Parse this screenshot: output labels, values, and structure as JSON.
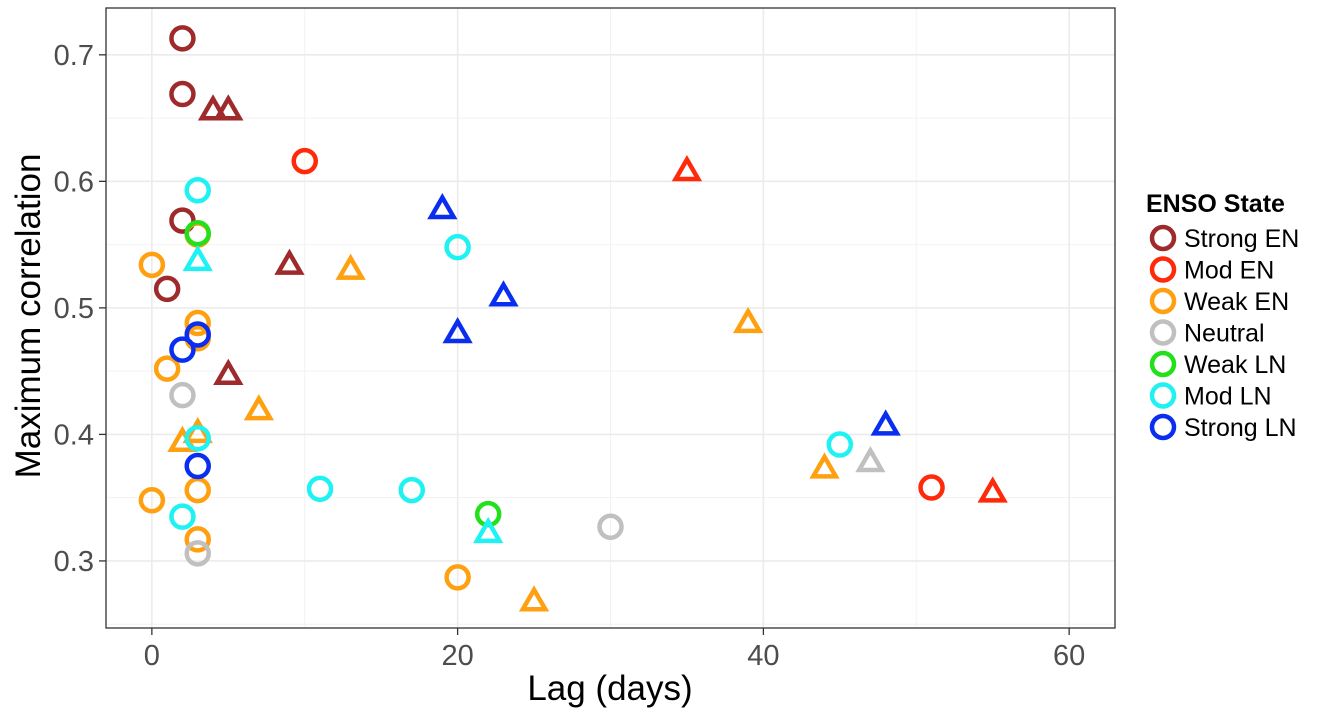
{
  "chart_data": {
    "type": "scatter",
    "xlabel": "Lag (days)",
    "ylabel": "Maximum correlation",
    "xlim": [
      -3,
      63
    ],
    "ylim": [
      0.247,
      0.737
    ],
    "x_ticks": [
      0,
      20,
      40,
      60
    ],
    "x_tick_labels": [
      "0",
      "20",
      "40",
      "60"
    ],
    "y_ticks": [
      0.3,
      0.4,
      0.5,
      0.6,
      0.7
    ],
    "y_tick_labels": [
      "0.3",
      "0.4",
      "0.5",
      "0.6",
      "0.7"
    ],
    "grid": true,
    "legend_title": "ENSO State",
    "legend_position": "right",
    "series": [
      {
        "name": "Strong EN",
        "color": "#9e2a2b",
        "points": [
          {
            "x": 2,
            "y": 0.713,
            "shape": "circle"
          },
          {
            "x": 2,
            "y": 0.669,
            "shape": "circle"
          },
          {
            "x": 2,
            "y": 0.569,
            "shape": "circle"
          },
          {
            "x": 1,
            "y": 0.515,
            "shape": "circle"
          },
          {
            "x": 4,
            "y": 0.655,
            "shape": "triangle"
          },
          {
            "x": 5,
            "y": 0.655,
            "shape": "triangle"
          },
          {
            "x": 9,
            "y": 0.533,
            "shape": "triangle"
          },
          {
            "x": 5,
            "y": 0.446,
            "shape": "triangle"
          }
        ]
      },
      {
        "name": "Mod EN",
        "color": "#ff2a0a",
        "points": [
          {
            "x": 10,
            "y": 0.616,
            "shape": "circle"
          },
          {
            "x": 51,
            "y": 0.358,
            "shape": "circle"
          },
          {
            "x": 35,
            "y": 0.607,
            "shape": "triangle"
          },
          {
            "x": 55,
            "y": 0.353,
            "shape": "triangle"
          }
        ]
      },
      {
        "name": "Weak EN",
        "color": "#ffa010",
        "points": [
          {
            "x": 0,
            "y": 0.534,
            "shape": "circle"
          },
          {
            "x": 3,
            "y": 0.558,
            "shape": "circle"
          },
          {
            "x": 3,
            "y": 0.488,
            "shape": "circle"
          },
          {
            "x": 3,
            "y": 0.476,
            "shape": "circle"
          },
          {
            "x": 1,
            "y": 0.452,
            "shape": "circle"
          },
          {
            "x": 0,
            "y": 0.348,
            "shape": "circle"
          },
          {
            "x": 3,
            "y": 0.356,
            "shape": "circle"
          },
          {
            "x": 3,
            "y": 0.317,
            "shape": "circle"
          },
          {
            "x": 20,
            "y": 0.287,
            "shape": "circle"
          },
          {
            "x": 13,
            "y": 0.529,
            "shape": "triangle"
          },
          {
            "x": 7,
            "y": 0.418,
            "shape": "triangle"
          },
          {
            "x": 2,
            "y": 0.393,
            "shape": "triangle"
          },
          {
            "x": 3,
            "y": 0.4,
            "shape": "triangle"
          },
          {
            "x": 25,
            "y": 0.267,
            "shape": "triangle"
          },
          {
            "x": 39,
            "y": 0.487,
            "shape": "triangle"
          },
          {
            "x": 44,
            "y": 0.372,
            "shape": "triangle"
          }
        ]
      },
      {
        "name": "Neutral",
        "color": "#c0c0c0",
        "points": [
          {
            "x": 2,
            "y": 0.431,
            "shape": "circle"
          },
          {
            "x": 3,
            "y": 0.306,
            "shape": "circle"
          },
          {
            "x": 30,
            "y": 0.327,
            "shape": "circle"
          },
          {
            "x": 47,
            "y": 0.377,
            "shape": "triangle"
          }
        ]
      },
      {
        "name": "Weak LN",
        "color": "#22e01a",
        "points": [
          {
            "x": 3,
            "y": 0.559,
            "shape": "circle"
          },
          {
            "x": 22,
            "y": 0.337,
            "shape": "circle"
          }
        ]
      },
      {
        "name": "Mod LN",
        "color": "#1ef2f2",
        "points": [
          {
            "x": 3,
            "y": 0.593,
            "shape": "circle"
          },
          {
            "x": 20,
            "y": 0.548,
            "shape": "circle"
          },
          {
            "x": 3,
            "y": 0.397,
            "shape": "circle"
          },
          {
            "x": 2,
            "y": 0.335,
            "shape": "circle"
          },
          {
            "x": 11,
            "y": 0.357,
            "shape": "circle"
          },
          {
            "x": 17,
            "y": 0.356,
            "shape": "circle"
          },
          {
            "x": 45,
            "y": 0.392,
            "shape": "circle"
          },
          {
            "x": 3,
            "y": 0.536,
            "shape": "triangle"
          },
          {
            "x": 22,
            "y": 0.321,
            "shape": "triangle"
          }
        ]
      },
      {
        "name": "Strong LN",
        "color": "#0a2ef0",
        "points": [
          {
            "x": 2,
            "y": 0.467,
            "shape": "circle"
          },
          {
            "x": 3,
            "y": 0.479,
            "shape": "circle"
          },
          {
            "x": 3,
            "y": 0.375,
            "shape": "circle"
          },
          {
            "x": 19,
            "y": 0.577,
            "shape": "triangle"
          },
          {
            "x": 20,
            "y": 0.479,
            "shape": "triangle"
          },
          {
            "x": 23,
            "y": 0.508,
            "shape": "triangle"
          },
          {
            "x": 48,
            "y": 0.406,
            "shape": "triangle"
          }
        ]
      }
    ]
  }
}
